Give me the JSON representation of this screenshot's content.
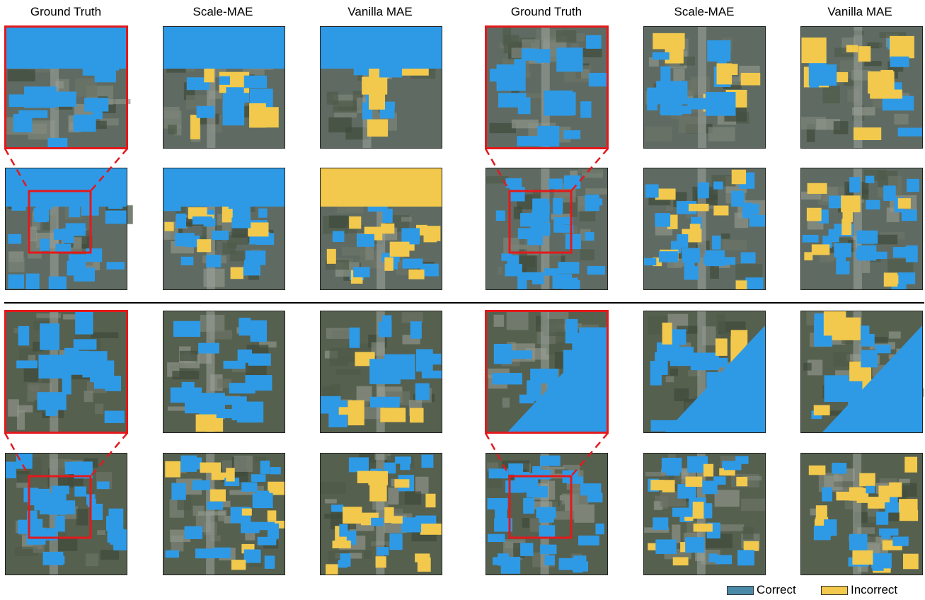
{
  "column_titles": [
    "Ground Truth",
    "Scale-MAE",
    "Vanilla MAE",
    "Ground Truth",
    "Scale-MAE",
    "Vanilla MAE"
  ],
  "legend": {
    "correct": {
      "label": "Correct",
      "color": "#4b89a8"
    },
    "incorrect": {
      "label": "Incorrect",
      "color": "#f2c94c"
    }
  },
  "colors": {
    "building_correct": "#2e9ae6",
    "building_incorrect": "#f2c94c",
    "zoom_box": "#e3191c",
    "divider": "#000000"
  },
  "panels": [
    {
      "group": 1,
      "column": "Ground Truth",
      "view": "zoomed"
    },
    {
      "group": 1,
      "column": "Ground Truth",
      "view": "full"
    },
    {
      "group": 2,
      "column": "Ground Truth",
      "view": "zoomed"
    },
    {
      "group": 2,
      "column": "Ground Truth",
      "view": "full"
    }
  ]
}
